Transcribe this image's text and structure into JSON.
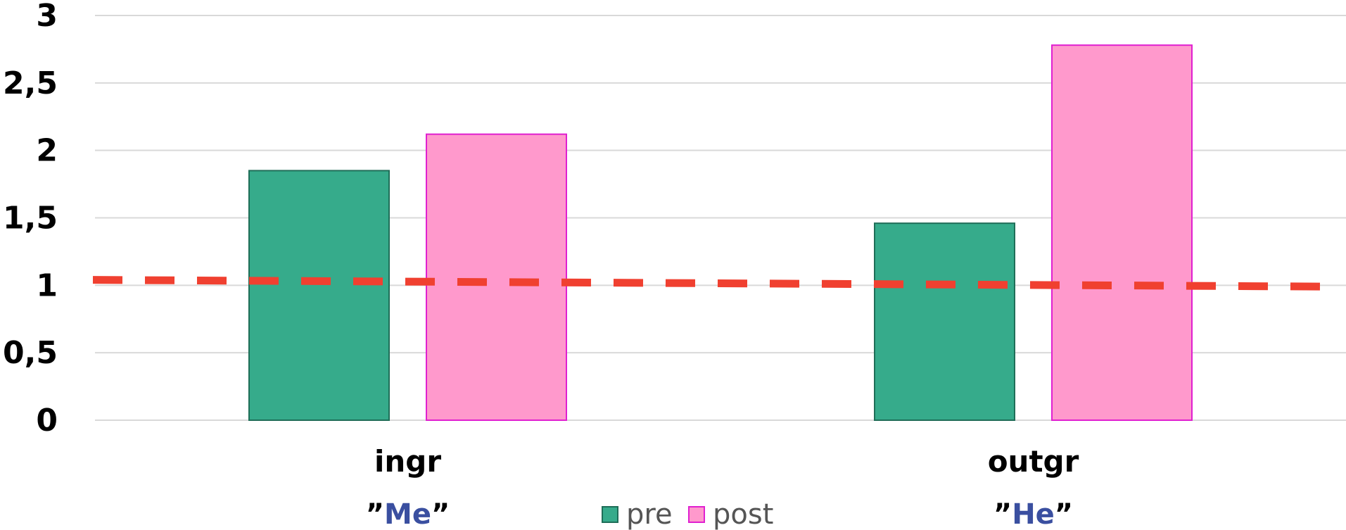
{
  "chart_data": {
    "type": "bar",
    "categories": [
      "ingr",
      "outgr"
    ],
    "category_sublabels": [
      {
        "quote_open": "”",
        "word": "Me",
        "quote_close": "”"
      },
      {
        "quote_open": "”",
        "word": "He",
        "quote_close": "”"
      }
    ],
    "series": [
      {
        "name": "pre",
        "values": [
          1.85,
          1.46
        ],
        "color": "#36ab8b",
        "stroke": "#1f6e58"
      },
      {
        "name": "post",
        "values": [
          2.12,
          2.78
        ],
        "color": "#ff99cc",
        "stroke": "#e020d0"
      }
    ],
    "yticks": [
      "0",
      "0,5",
      "1",
      "1,5",
      "2",
      "2,5",
      "3"
    ],
    "ytick_values": [
      0,
      0.5,
      1,
      1.5,
      2,
      2.5,
      3
    ],
    "ylim": [
      0,
      3
    ],
    "reference_line": {
      "start": 1.04,
      "end": 0.99,
      "color": "#f04030",
      "style": "dashed"
    },
    "grid": true,
    "legend_position": "bottom-center",
    "sublabel_color": "#3a4fa0"
  }
}
